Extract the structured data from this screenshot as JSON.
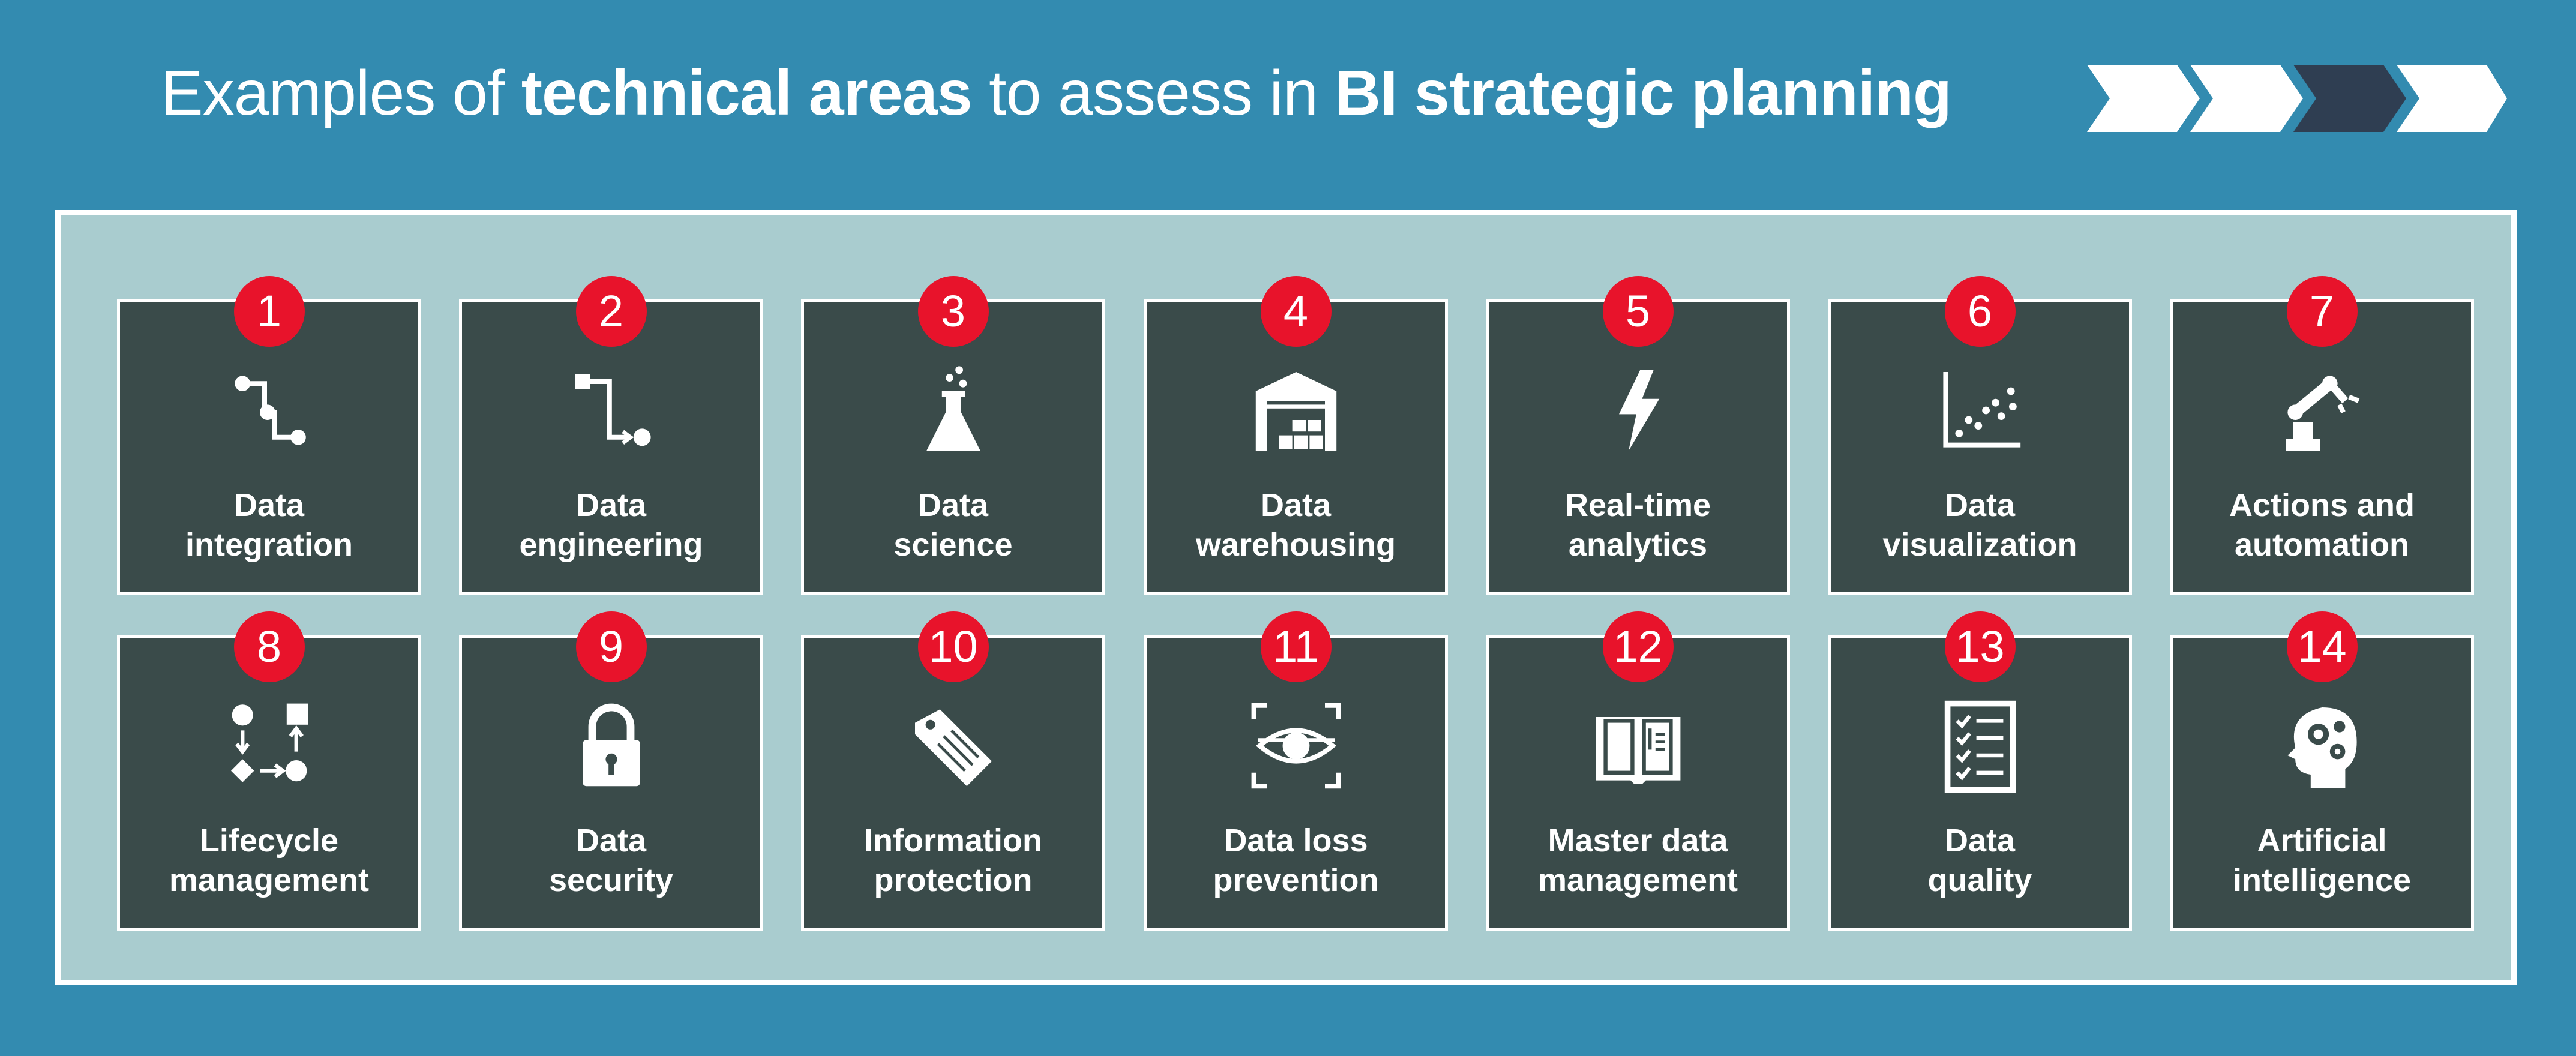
{
  "title": {
    "part1": "Examples of ",
    "part2": "technical areas",
    "part3": " to assess in ",
    "part4": "BI strategic planning"
  },
  "colors": {
    "background": "#338bb0",
    "panel": "#a9cccf",
    "card": "#3a4b4a",
    "badge": "#e8132b",
    "chevron_active": "#2f3e52"
  },
  "progress": {
    "steps": 4,
    "active_step": 3
  },
  "cards": [
    {
      "number": "1",
      "line1": "Data",
      "line2": "integration",
      "icon": "integration-icon"
    },
    {
      "number": "2",
      "line1": "Data",
      "line2": "engineering",
      "icon": "engineering-icon"
    },
    {
      "number": "3",
      "line1": "Data",
      "line2": "science",
      "icon": "flask-icon"
    },
    {
      "number": "4",
      "line1": "Data",
      "line2": "warehousing",
      "icon": "warehouse-icon"
    },
    {
      "number": "5",
      "line1": "Real-time",
      "line2": "analytics",
      "icon": "lightning-icon"
    },
    {
      "number": "6",
      "line1": "Data",
      "line2": "visualization",
      "icon": "scatter-plot-icon"
    },
    {
      "number": "7",
      "line1": "Actions and",
      "line2": "automation",
      "icon": "robot-arm-icon"
    },
    {
      "number": "8",
      "line1": "Lifecycle",
      "line2": "management",
      "icon": "lifecycle-flow-icon"
    },
    {
      "number": "9",
      "line1": "Data",
      "line2": "security",
      "icon": "lock-icon"
    },
    {
      "number": "10",
      "line1": "Information",
      "line2": "protection",
      "icon": "tag-icon"
    },
    {
      "number": "11",
      "line1": "Data loss",
      "line2": "prevention",
      "icon": "eye-scan-icon"
    },
    {
      "number": "12",
      "line1": "Master data",
      "line2": "management",
      "icon": "book-icon"
    },
    {
      "number": "13",
      "line1": "Data",
      "line2": "quality",
      "icon": "checklist-icon"
    },
    {
      "number": "14",
      "line1": "Artificial",
      "line2": "intelligence",
      "icon": "ai-head-icon"
    }
  ]
}
